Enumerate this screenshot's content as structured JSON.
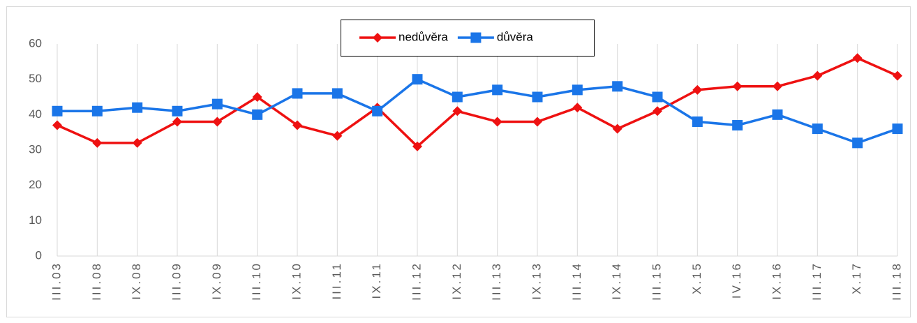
{
  "chart_data": {
    "type": "line",
    "categories": [
      "III.03",
      "III.08",
      "IX.08",
      "III.09",
      "IX.09",
      "III.10",
      "IX.10",
      "III.11",
      "IX.11",
      "III.12",
      "IX.12",
      "III.13",
      "IX.13",
      "III.14",
      "IX.14",
      "III.15",
      "X.15",
      "IV.16",
      "IX.16",
      "III.17",
      "X.17",
      "III.18"
    ],
    "series": [
      {
        "name": "nedůvěra",
        "color": "#ee1111",
        "marker": "diamond",
        "values": [
          37,
          32,
          32,
          38,
          38,
          45,
          37,
          34,
          42,
          31,
          41,
          38,
          38,
          42,
          36,
          41,
          47,
          48,
          48,
          51,
          56,
          51
        ]
      },
      {
        "name": "důvěra",
        "color": "#1a75e8",
        "marker": "square",
        "values": [
          41,
          41,
          42,
          41,
          43,
          40,
          46,
          46,
          41,
          50,
          45,
          47,
          45,
          47,
          48,
          45,
          38,
          37,
          40,
          36,
          32,
          36
        ]
      }
    ],
    "ylim": [
      0,
      60
    ],
    "yticks": [
      0,
      10,
      20,
      30,
      40,
      50,
      60
    ],
    "grid": "vertical",
    "legend": "top"
  }
}
